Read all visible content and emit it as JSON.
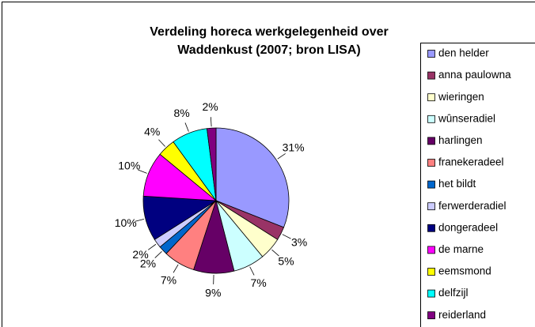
{
  "chart_data": {
    "type": "pie",
    "title": [
      "Verdeling horeca werkgelegenheid over",
      "Waddenkust (2007; bron LISA)"
    ],
    "categories": [
      "den helder",
      "anna paulowna",
      "wieringen",
      "wûnseradiel",
      "harlingen",
      "franekeradeel",
      "het bildt",
      "ferwerderadiel",
      "dongeradeel",
      "de marne",
      "eemsmond",
      "delfzijl",
      "reiderland"
    ],
    "values": [
      31,
      3,
      5,
      7,
      9,
      7,
      2,
      2,
      10,
      10,
      4,
      8,
      2
    ],
    "value_labels": [
      "31%",
      "3%",
      "5%",
      "7%",
      "9%",
      "7%",
      "2%",
      "2%",
      "10%",
      "10%",
      "4%",
      "8%",
      "2%"
    ],
    "colors": [
      "#9999ff",
      "#993366",
      "#ffffcc",
      "#ccffff",
      "#660066",
      "#ff8080",
      "#0066cc",
      "#ccccff",
      "#000080",
      "#ff00ff",
      "#ffff00",
      "#00ffff",
      "#800080"
    ],
    "legend": "right"
  }
}
